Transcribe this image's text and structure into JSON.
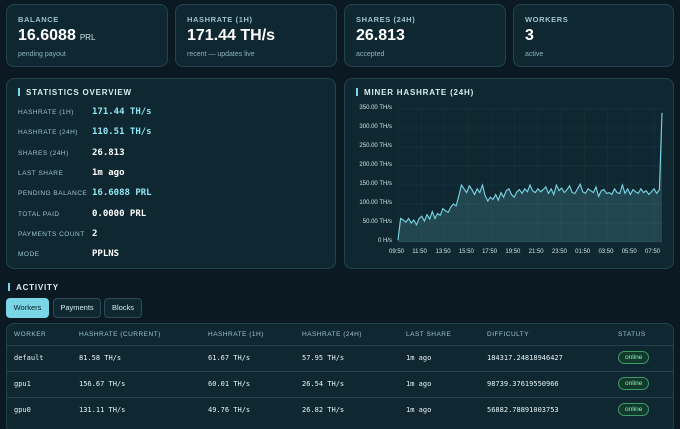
{
  "stats": [
    {
      "label": "BALANCE",
      "value": "16.6088",
      "unit": "PRL",
      "sub": "pending payout"
    },
    {
      "label": "HASHRATE (1H)",
      "value": "171.44 TH/s",
      "unit": "",
      "sub": "recent — updates live"
    },
    {
      "label": "SHARES (24H)",
      "value": "26.813",
      "unit": "",
      "sub": "accepted"
    },
    {
      "label": "WORKERS",
      "value": "3",
      "unit": "",
      "sub": "active"
    }
  ],
  "overview": {
    "title": "STATISTICS OVERVIEW",
    "rows": [
      {
        "key": "HASHRATE (1H)",
        "value": "171.44 TH/s"
      },
      {
        "key": "HASHRATE (24H)",
        "value": "110.51 TH/s"
      },
      {
        "key": "SHARES (24H)",
        "value": "26.813"
      },
      {
        "key": "LAST SHARE",
        "value": "1m ago"
      },
      {
        "key": "PENDING BALANCE",
        "value": "16.6088 PRL"
      },
      {
        "key": "TOTAL PAID",
        "value": "0.0000 PRL"
      },
      {
        "key": "PAYMENTS COUNT",
        "value": "2"
      },
      {
        "key": "MODE",
        "value": "PPLNS"
      }
    ]
  },
  "chart_title": "MINER HASHRATE (24H)",
  "chart_data": {
    "type": "area",
    "title": "MINER HASHRATE (24H)",
    "ylim": [
      0,
      350
    ],
    "yticks": [
      "0 H/s",
      "50.00 TH/s",
      "100.00 TH/s",
      "150.00 TH/s",
      "200.00 TH/s",
      "250.00 TH/s",
      "300.00 TH/s",
      "350.00 TH/s"
    ],
    "xticks": [
      "09:50",
      "11:50",
      "13:50",
      "15:50",
      "17:50",
      "19:50",
      "21:50",
      "23:50",
      "01:50",
      "03:50",
      "05:50",
      "07:50"
    ],
    "series": [
      {
        "color": "#7ad6e6",
        "values": [
          5,
          62,
          58,
          52,
          62,
          50,
          58,
          45,
          62,
          68,
          55,
          72,
          60,
          80,
          62,
          75,
          70,
          88,
          82,
          78,
          92,
          100,
          95,
          120,
          150,
          140,
          130,
          148,
          138,
          125,
          140,
          130,
          150,
          122,
          108,
          118,
          112,
          125,
          110,
          130,
          118,
          135,
          140,
          125,
          118,
          132,
          138,
          128,
          140,
          132,
          150,
          135,
          130,
          140,
          132,
          138,
          145,
          128,
          140,
          125,
          150,
          135,
          142,
          130,
          138,
          148,
          130,
          128,
          140,
          152,
          132,
          128,
          140,
          135,
          130,
          145,
          120,
          135,
          138,
          128,
          130,
          125,
          140,
          130,
          128,
          150,
          128,
          140,
          125,
          138,
          132,
          128,
          140,
          130,
          135,
          125,
          132,
          140,
          128,
          138,
          340
        ]
      }
    ]
  },
  "activity": {
    "title": "ACTIVITY",
    "tabs": [
      "Workers",
      "Payments",
      "Blocks"
    ],
    "columns": [
      "WORKER",
      "HASHRATE (CURRENT)",
      "HASHRATE (1H)",
      "HASHRATE (24H)",
      "LAST SHARE",
      "DIFFICULTY",
      "STATUS"
    ],
    "rows": [
      [
        "default",
        "81.58 TH/s",
        "61.67 TH/s",
        "57.95 TH/s",
        "1m ago",
        "184317.24818946427",
        "online"
      ],
      [
        "gpu1",
        "156.67 TH/s",
        "60.01 TH/s",
        "26.54 TH/s",
        "1m ago",
        "98739.37619550966",
        "online"
      ],
      [
        "gpu0",
        "131.11 TH/s",
        "49.76 TH/s",
        "26.82 TH/s",
        "1m ago",
        "56882.78891003753",
        "online"
      ]
    ]
  }
}
